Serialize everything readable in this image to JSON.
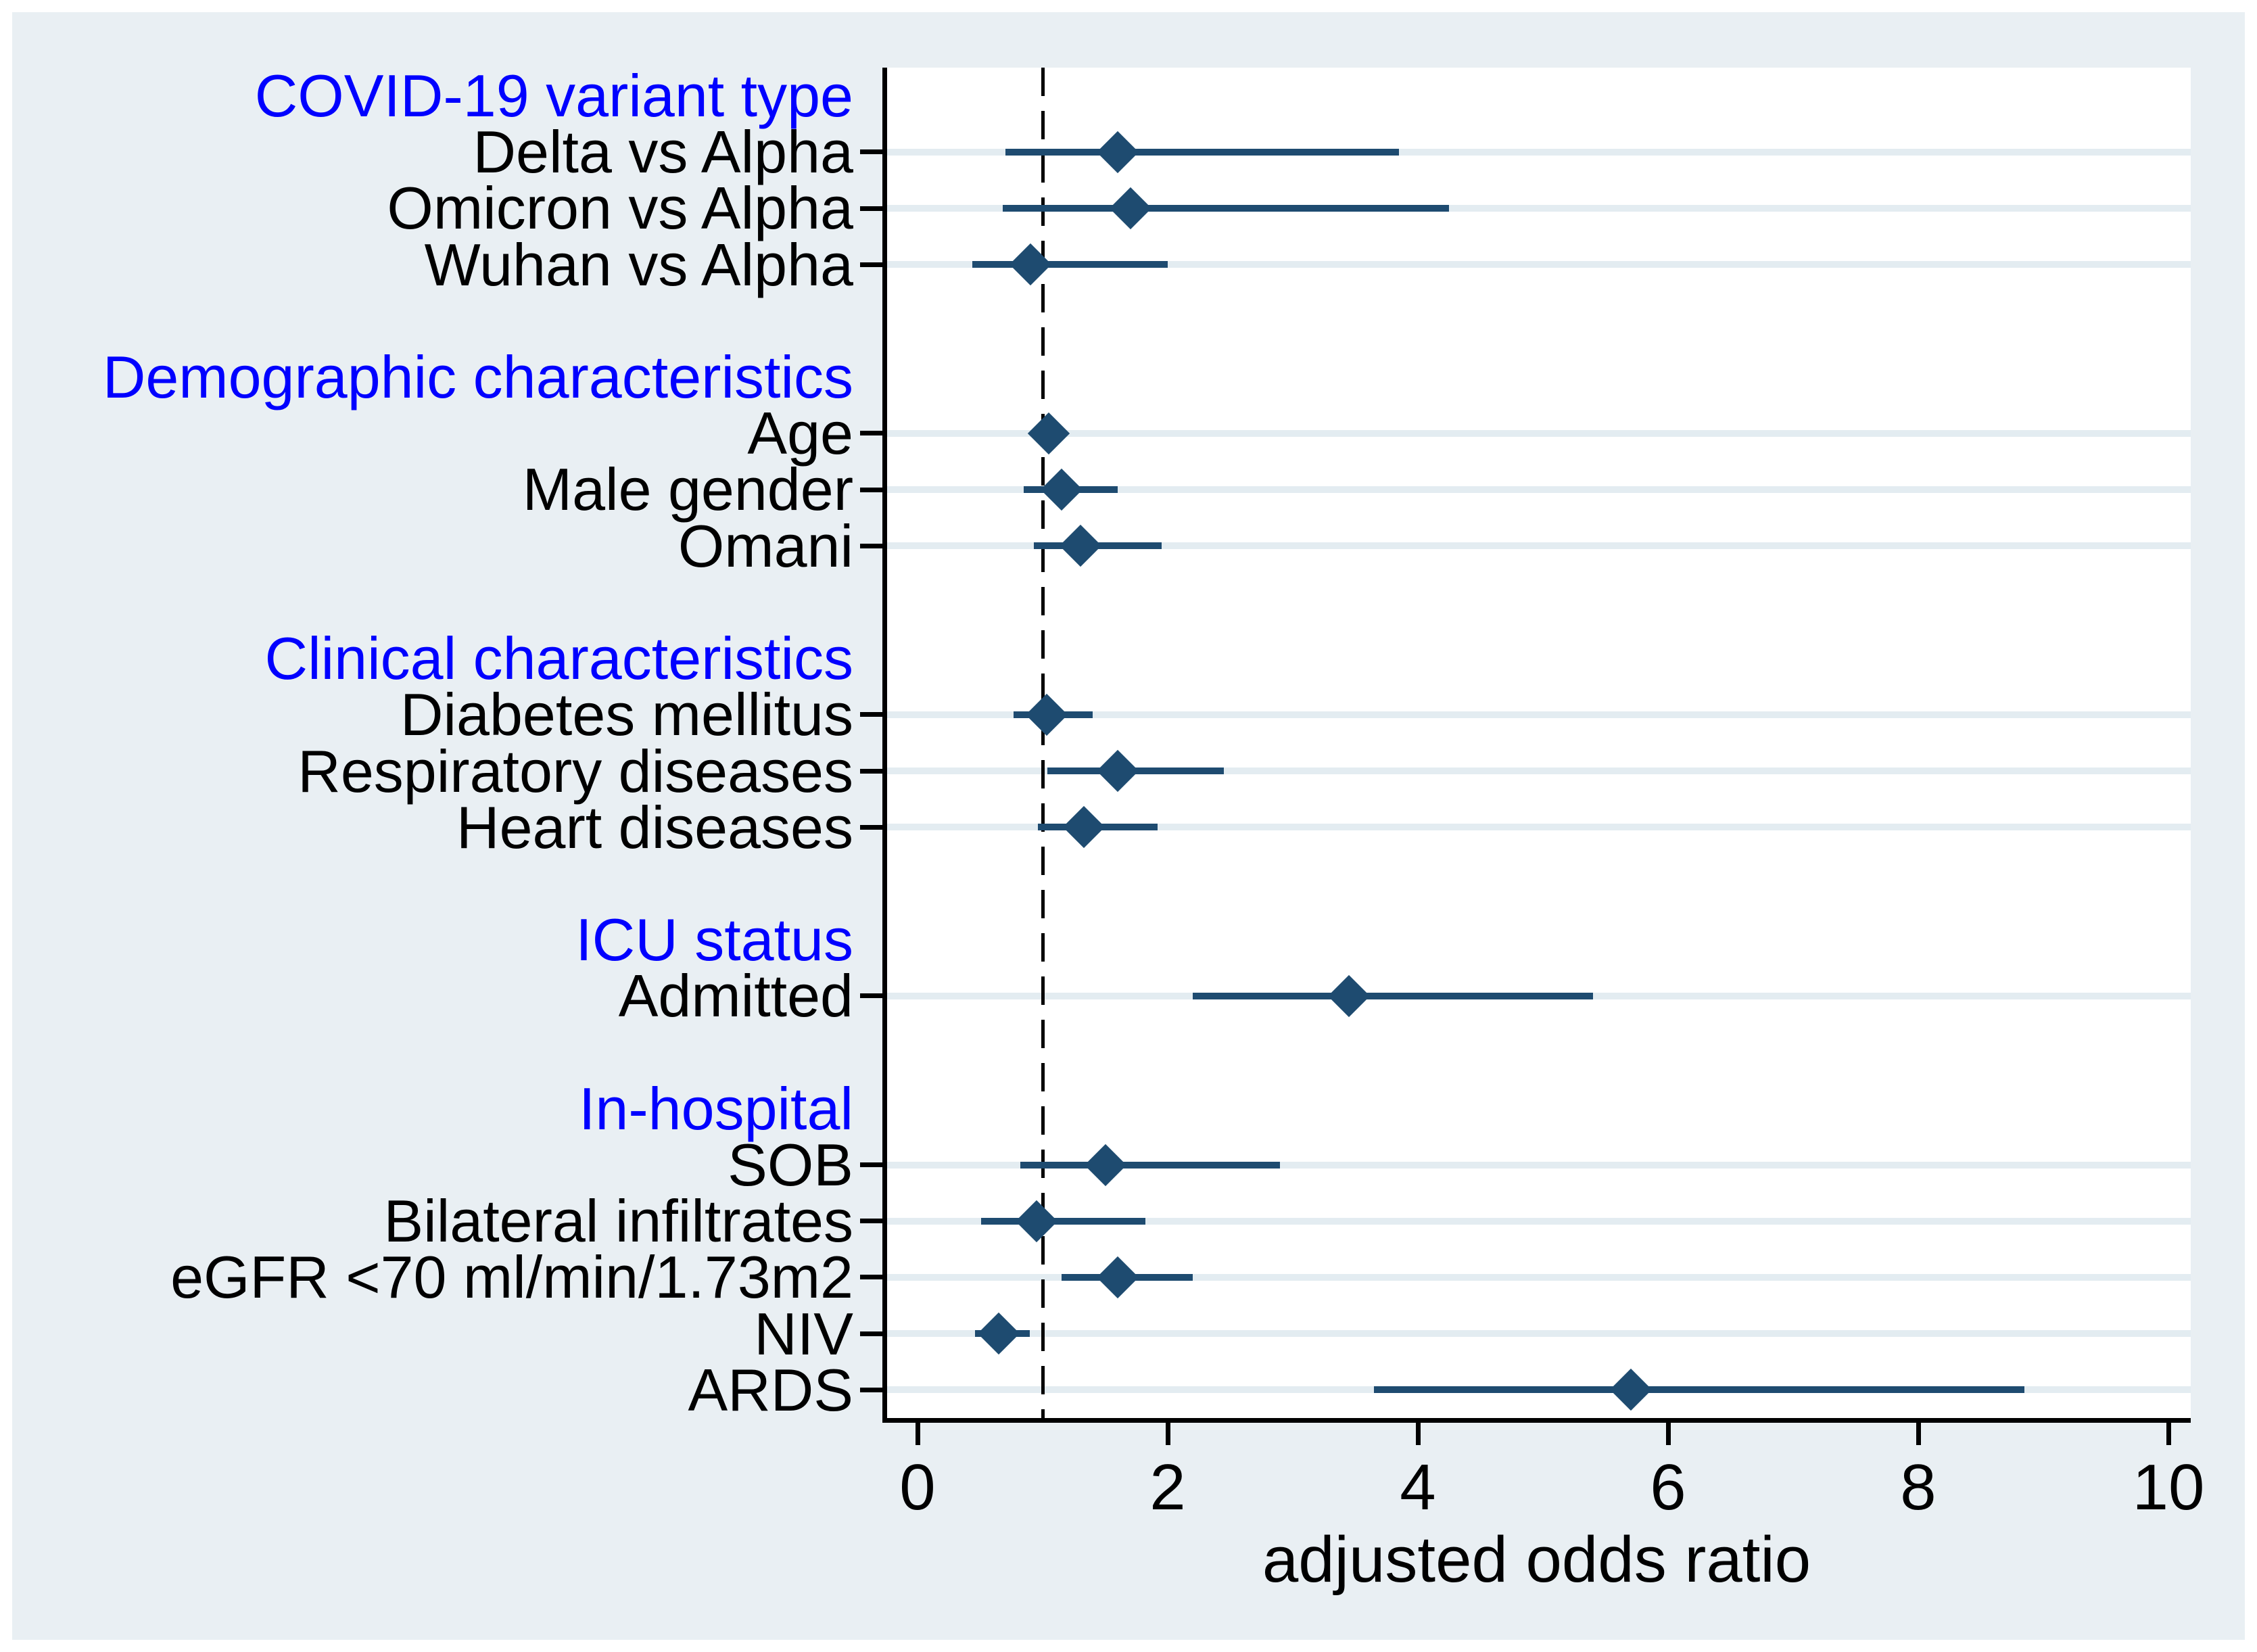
{
  "chart_data": {
    "type": "forest",
    "xlabel": "adjusted odds ratio",
    "x_ticks": [
      0,
      2,
      4,
      6,
      8,
      10
    ],
    "x_range": [
      -0.3,
      10.2
    ],
    "reference_line_x": 1,
    "marker": "diamond",
    "grid": "row-stripes",
    "legend": null,
    "groups": [
      {
        "header": "COVID-19 variant type",
        "items": [
          {
            "label": "Delta vs Alpha",
            "or": 1.6,
            "ci_low": 0.7,
            "ci_high": 3.85
          },
          {
            "label": "Omicron vs Alpha",
            "or": 1.7,
            "ci_low": 0.68,
            "ci_high": 4.25
          },
          {
            "label": "Wuhan vs Alpha",
            "or": 0.9,
            "ci_low": 0.44,
            "ci_high": 2.0
          }
        ]
      },
      {
        "header": "Demographic characteristics",
        "items": [
          {
            "label": "Age",
            "or": 1.05,
            "ci_low": 1.0,
            "ci_high": 1.1
          },
          {
            "label": "Male gender",
            "or": 1.15,
            "ci_low": 0.85,
            "ci_high": 1.6
          },
          {
            "label": "Omani",
            "or": 1.3,
            "ci_low": 0.93,
            "ci_high": 1.95
          }
        ]
      },
      {
        "header": "Clinical characteristics",
        "items": [
          {
            "label": "Diabetes mellitus",
            "or": 1.03,
            "ci_low": 0.77,
            "ci_high": 1.4
          },
          {
            "label": "Respiratory diseases",
            "or": 1.6,
            "ci_low": 1.04,
            "ci_high": 2.45
          },
          {
            "label": "Heart diseases",
            "or": 1.33,
            "ci_low": 0.96,
            "ci_high": 1.92
          }
        ]
      },
      {
        "header": "ICU status",
        "items": [
          {
            "label": "Admitted",
            "or": 3.45,
            "ci_low": 2.2,
            "ci_high": 5.4
          }
        ]
      },
      {
        "header": "In-hospital",
        "items": [
          {
            "label": "SOB",
            "or": 1.5,
            "ci_low": 0.82,
            "ci_high": 2.9
          },
          {
            "label": "Bilateral infiltrates",
            "or": 0.95,
            "ci_low": 0.51,
            "ci_high": 1.82
          },
          {
            "label": "eGFR <70 ml/min/1.73m2",
            "or": 1.6,
            "ci_low": 1.15,
            "ci_high": 2.2
          },
          {
            "label": "NIV",
            "or": 0.65,
            "ci_low": 0.46,
            "ci_high": 0.9
          },
          {
            "label": "ARDS",
            "or": 5.7,
            "ci_low": 3.65,
            "ci_high": 8.85
          }
        ]
      }
    ],
    "colors": {
      "marker": "#1e4b70",
      "header_text": "#0000ff",
      "label_text": "#000000",
      "panel_background": "#e9eff3",
      "row_stripe": "#e3ecf1",
      "axis": "#000000",
      "plot_background": "#ffffff"
    }
  }
}
